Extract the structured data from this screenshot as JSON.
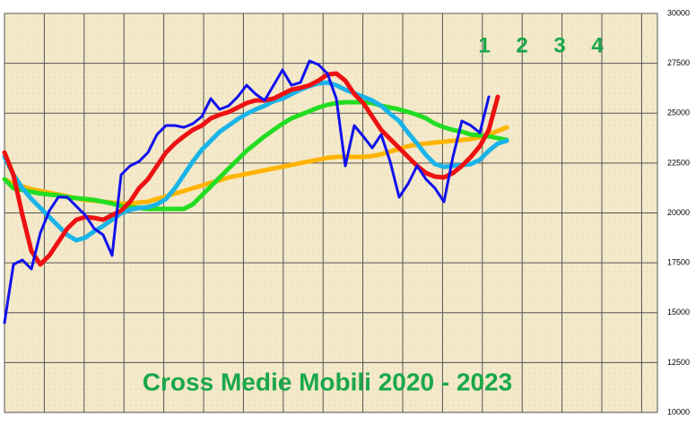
{
  "chart_data": {
    "type": "line",
    "title": "Cross Medie Mobili 2020 - 2023",
    "annotations": [
      "1",
      "2",
      "3",
      "4"
    ],
    "annotation_color": "#1aa84a",
    "ylim": [
      10000,
      30000
    ],
    "yticks": [
      10000,
      12500,
      15000,
      17500,
      20000,
      22500,
      25000,
      27500,
      30000
    ],
    "xlim": [
      0,
      72.8
    ],
    "grid": true,
    "y_axis_side": "right",
    "series": [
      {
        "color": "#ffb400",
        "values": [
          21690,
          21460,
          21330,
          21190,
          21100,
          21010,
          20920,
          20830,
          20740,
          20650,
          20610,
          20560,
          20520,
          20470,
          20470,
          20520,
          20560,
          20700,
          20830,
          20970,
          21100,
          21240,
          21370,
          21510,
          21640,
          21780,
          21870,
          21960,
          22050,
          22140,
          22230,
          22320,
          22410,
          22500,
          22580,
          22670,
          22760,
          22810,
          22810,
          22810,
          22810,
          22850,
          22940,
          23080,
          23210,
          23350,
          23440,
          23480,
          23530,
          23570,
          23620,
          23660,
          23710,
          23800,
          23930,
          24110,
          24290
        ]
      },
      {
        "color": "#22dd22",
        "values": [
          21690,
          21240,
          21150,
          21060,
          20970,
          20920,
          20880,
          20790,
          20740,
          20700,
          20650,
          20560,
          20470,
          20340,
          20290,
          20250,
          20200,
          20200,
          20200,
          20200,
          20200,
          20430,
          20880,
          21330,
          21780,
          22230,
          22670,
          23120,
          23480,
          23840,
          24160,
          24470,
          24740,
          24920,
          25100,
          25280,
          25420,
          25510,
          25550,
          25550,
          25550,
          25510,
          25370,
          25280,
          25190,
          25060,
          24920,
          24740,
          24470,
          24290,
          24160,
          24070,
          23930,
          23890,
          23840,
          23750,
          23660
        ]
      },
      {
        "color": "#1ab4e8",
        "values": [
          22810,
          21910,
          21240,
          20700,
          20250,
          19800,
          19350,
          18900,
          18630,
          18760,
          19080,
          19350,
          19660,
          19980,
          20160,
          20250,
          20290,
          20430,
          20700,
          21240,
          21910,
          22580,
          23170,
          23620,
          24070,
          24380,
          24700,
          24970,
          25190,
          25370,
          25600,
          25730,
          25960,
          26180,
          26360,
          26490,
          26540,
          26400,
          26180,
          26000,
          25820,
          25640,
          25370,
          24970,
          24610,
          24020,
          23480,
          22900,
          22450,
          22310,
          22360,
          22400,
          22450,
          22670,
          23120,
          23480,
          23620
        ]
      },
      {
        "color": "#ee1111",
        "values": [
          23030,
          21910,
          19890,
          18090,
          17420,
          17870,
          18540,
          19220,
          19660,
          19800,
          19750,
          19660,
          19890,
          20110,
          20560,
          21240,
          21690,
          22360,
          23030,
          23480,
          23840,
          24160,
          24380,
          24740,
          24920,
          25060,
          25280,
          25510,
          25640,
          25640,
          25730,
          25960,
          26180,
          26270,
          26400,
          26630,
          26940,
          26990,
          26630,
          25960,
          25510,
          24830,
          24160,
          23710,
          23260,
          22810,
          22360,
          22000,
          21820,
          21780,
          22000,
          22360,
          22810,
          23350,
          24160,
          25820,
          null
        ]
      },
      {
        "color": "#1111ee",
        "values": [
          14500,
          17420,
          17640,
          17190,
          19000,
          20110,
          20790,
          20790,
          20340,
          19890,
          19220,
          18900,
          17870,
          21910,
          22360,
          22580,
          23030,
          23930,
          24380,
          24380,
          24290,
          24470,
          24830,
          25730,
          25190,
          25370,
          25820,
          26400,
          25960,
          25640,
          26400,
          27170,
          26400,
          26540,
          27620,
          27440,
          26990,
          25730,
          22360,
          24380,
          23840,
          23260,
          23930,
          22580,
          20790,
          21460,
          22360,
          21690,
          21240,
          20560,
          22810,
          24610,
          24380,
          24020,
          25820,
          null,
          null
        ]
      }
    ]
  }
}
